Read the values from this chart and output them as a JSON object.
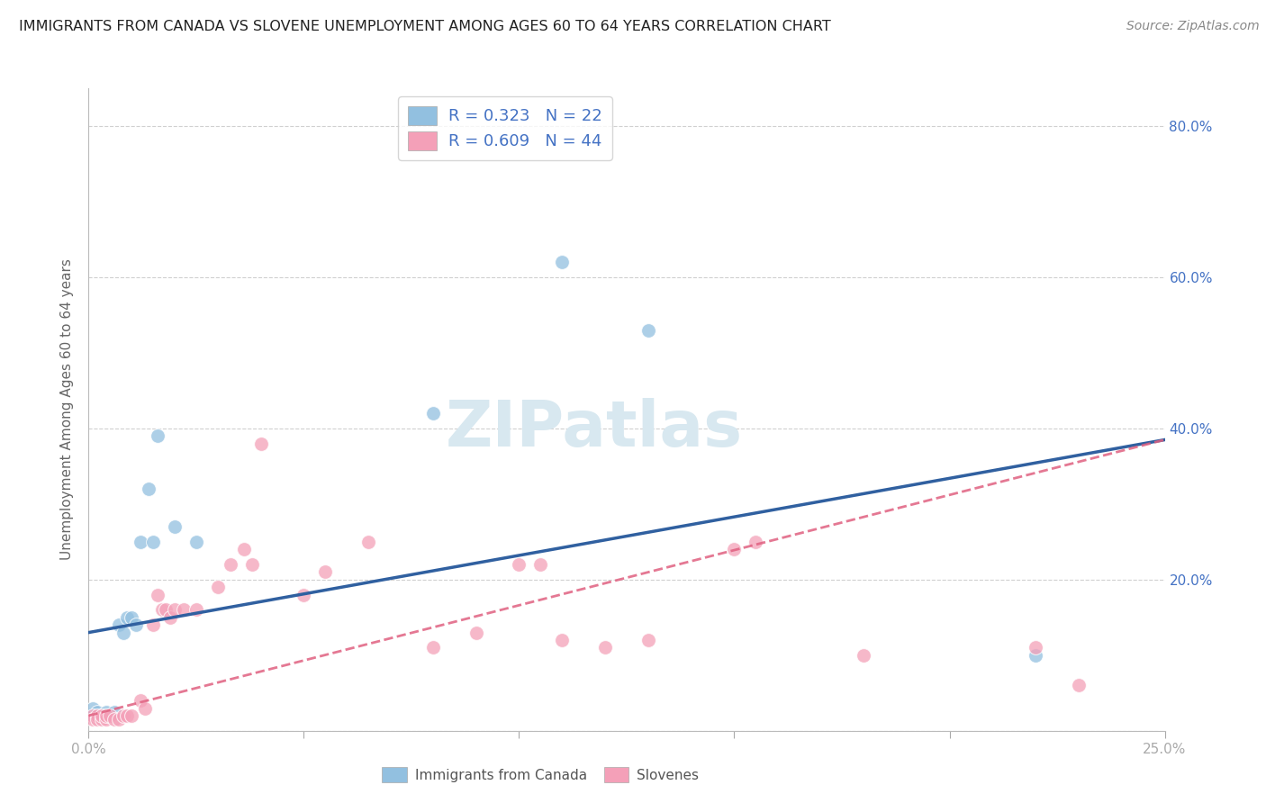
{
  "title": "IMMIGRANTS FROM CANADA VS SLOVENE UNEMPLOYMENT AMONG AGES 60 TO 64 YEARS CORRELATION CHART",
  "source": "Source: ZipAtlas.com",
  "ylabel": "Unemployment Among Ages 60 to 64 years",
  "legend_label1": "Immigrants from Canada",
  "legend_label2": "Slovenes",
  "R1": 0.323,
  "N1": 22,
  "R2": 0.609,
  "N2": 44,
  "color_blue": "#92c0e0",
  "color_pink": "#f4a0b8",
  "line_color_blue": "#3060a0",
  "line_color_pink": "#e06080",
  "background_color": "#ffffff",
  "grid_color": "#d0d0d0",
  "axis_label_color": "#4472c4",
  "watermark": "ZIPatlas",
  "blue_x": [
    0.001,
    0.001,
    0.002,
    0.003,
    0.004,
    0.005,
    0.006,
    0.007,
    0.008,
    0.009,
    0.01,
    0.011,
    0.012,
    0.014,
    0.015,
    0.016,
    0.02,
    0.025,
    0.08,
    0.11,
    0.13,
    0.22
  ],
  "blue_y": [
    0.02,
    0.03,
    0.025,
    0.02,
    0.025,
    0.02,
    0.025,
    0.14,
    0.13,
    0.15,
    0.15,
    0.14,
    0.25,
    0.32,
    0.25,
    0.39,
    0.27,
    0.25,
    0.42,
    0.62,
    0.53,
    0.1
  ],
  "pink_x": [
    0.001,
    0.001,
    0.002,
    0.002,
    0.003,
    0.003,
    0.004,
    0.004,
    0.005,
    0.006,
    0.007,
    0.008,
    0.009,
    0.01,
    0.012,
    0.013,
    0.015,
    0.016,
    0.017,
    0.018,
    0.019,
    0.02,
    0.022,
    0.025,
    0.03,
    0.033,
    0.036,
    0.038,
    0.04,
    0.05,
    0.055,
    0.065,
    0.08,
    0.09,
    0.1,
    0.105,
    0.11,
    0.12,
    0.13,
    0.15,
    0.155,
    0.18,
    0.22,
    0.23
  ],
  "pink_y": [
    0.02,
    0.015,
    0.02,
    0.015,
    0.015,
    0.02,
    0.015,
    0.02,
    0.02,
    0.015,
    0.015,
    0.02,
    0.02,
    0.02,
    0.04,
    0.03,
    0.14,
    0.18,
    0.16,
    0.16,
    0.15,
    0.16,
    0.16,
    0.16,
    0.19,
    0.22,
    0.24,
    0.22,
    0.38,
    0.18,
    0.21,
    0.25,
    0.11,
    0.13,
    0.22,
    0.22,
    0.12,
    0.11,
    0.12,
    0.24,
    0.25,
    0.1,
    0.11,
    0.06
  ],
  "xlim": [
    0.0,
    0.25
  ],
  "ylim": [
    0.0,
    0.85
  ],
  "blue_line_x": [
    0.0,
    0.25
  ],
  "blue_line_y": [
    0.13,
    0.385
  ],
  "pink_line_x": [
    0.0,
    0.25
  ],
  "pink_line_y": [
    0.02,
    0.385
  ]
}
